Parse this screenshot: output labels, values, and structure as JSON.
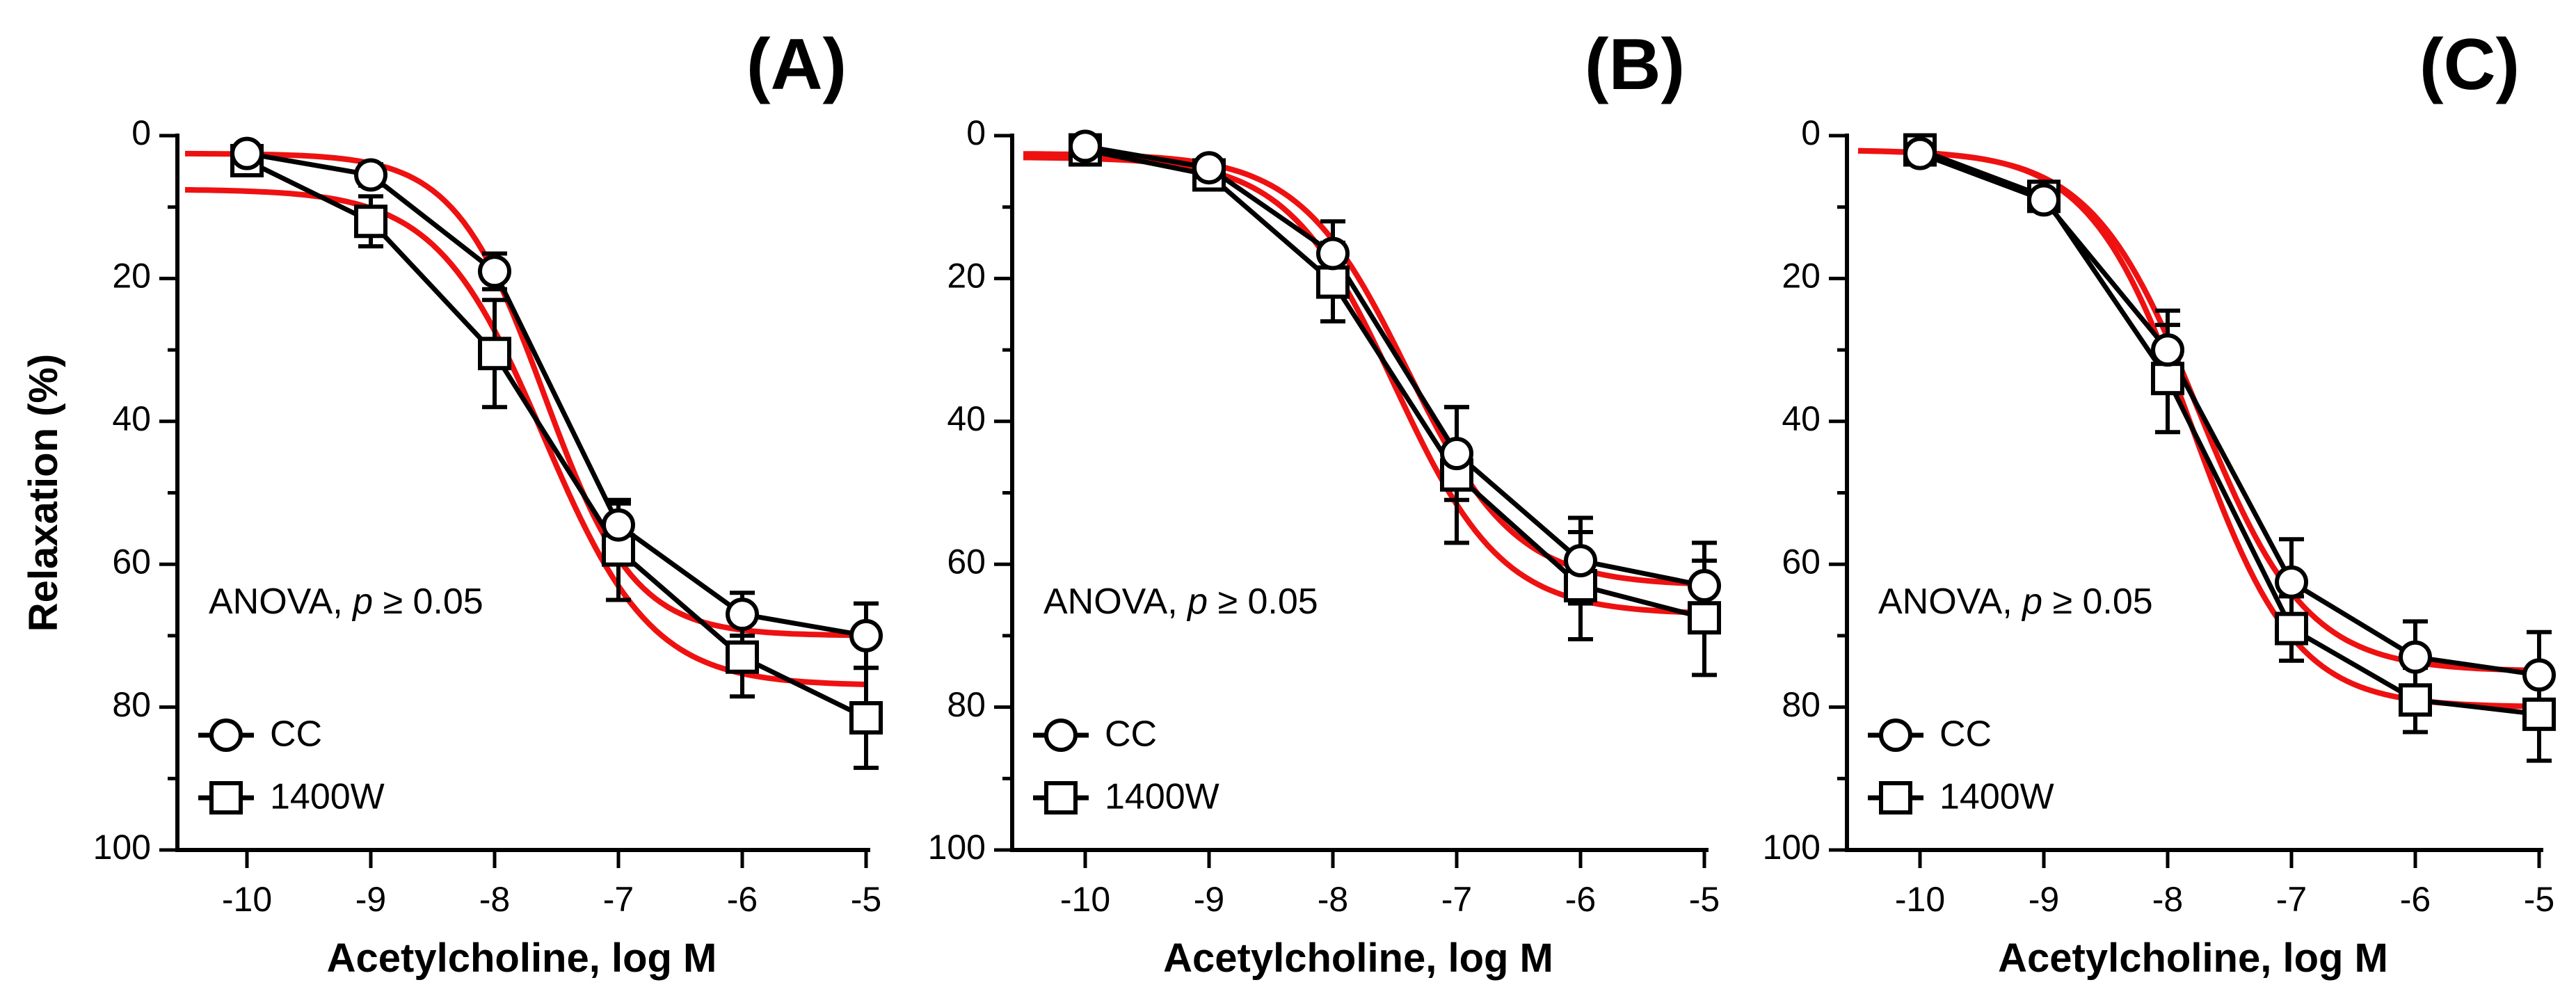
{
  "chart_data": [
    {
      "type": "line",
      "panel_label": "(A)",
      "xlabel": "Acetylcholine, log M",
      "ylabel": "Relaxation (%)",
      "annotation": {
        "prefix": "ANOVA, ",
        "italic": "p",
        "suffix": " ≥ 0.05"
      },
      "x": [
        -10,
        -9,
        -8,
        -7,
        -6,
        -5
      ],
      "xlim": [
        -10.5,
        -5
      ],
      "ylim": [
        0,
        100
      ],
      "y_inverted": true,
      "x_ticks": [
        "-10",
        "-9",
        "-8",
        "-7",
        "-6",
        "-5"
      ],
      "y_ticks": [
        "0",
        "20",
        "40",
        "60",
        "80",
        "100"
      ],
      "legend": {
        "position": "bottom-left"
      },
      "series": [
        {
          "name": "CC",
          "marker": "circle",
          "values": [
            2.5,
            5.5,
            19,
            54.5,
            67,
            70
          ],
          "errors": [
            0,
            1.5,
            2.5,
            3,
            3,
            4.5
          ],
          "fit": {
            "bottom": 2.5,
            "top": 70,
            "logEC50": -7.6,
            "hill": 1.2,
            "color": "#ee1111"
          }
        },
        {
          "name": "1400W",
          "marker": "square",
          "values": [
            3.5,
            12,
            30.5,
            58,
            73,
            81.5
          ],
          "errors": [
            0,
            3.5,
            7.5,
            7,
            5.5,
            7
          ],
          "fit": {
            "bottom": 7.5,
            "top": 77,
            "logEC50": -7.6,
            "hill": 1.0,
            "color": "#ee1111"
          }
        }
      ]
    },
    {
      "type": "line",
      "panel_label": "(B)",
      "xlabel": "Acetylcholine, log M",
      "ylabel": "",
      "annotation": {
        "prefix": "ANOVA, ",
        "italic": "p",
        "suffix": " ≥ 0.05"
      },
      "x": [
        -10,
        -9,
        -8,
        -7,
        -6,
        -5
      ],
      "xlim": [
        -10.5,
        -5
      ],
      "ylim": [
        0,
        100
      ],
      "y_inverted": true,
      "x_ticks": [
        "-10",
        "-9",
        "-8",
        "-7",
        "-6",
        "-5"
      ],
      "y_ticks": [
        "0",
        "20",
        "40",
        "60",
        "80",
        "100"
      ],
      "legend": {
        "position": "bottom-left"
      },
      "series": [
        {
          "name": "CC",
          "marker": "circle",
          "values": [
            1.5,
            4.5,
            16.5,
            44.5,
            59.5,
            63
          ],
          "errors": [
            0,
            0,
            4.5,
            6.5,
            6,
            6
          ],
          "fit": {
            "bottom": 2.5,
            "top": 63,
            "logEC50": -7.4,
            "hill": 1.0,
            "color": "#ee1111"
          }
        },
        {
          "name": "1400W",
          "marker": "square",
          "values": [
            2,
            5.5,
            20.5,
            47.5,
            63,
            67.5
          ],
          "errors": [
            0,
            0,
            5.5,
            9.5,
            7.5,
            8
          ],
          "fit": {
            "bottom": 3,
            "top": 67,
            "logEC50": -7.5,
            "hill": 1.0,
            "color": "#ee1111"
          }
        }
      ]
    },
    {
      "type": "line",
      "panel_label": "(C)",
      "xlabel": "Acetylcholine, log M",
      "ylabel": "",
      "annotation": {
        "prefix": "ANOVA, ",
        "italic": "p",
        "suffix": " ≥ 0.05"
      },
      "x": [
        -10,
        -9,
        -8,
        -7,
        -6,
        -5
      ],
      "xlim": [
        -10.5,
        -5
      ],
      "ylim": [
        0,
        100
      ],
      "y_inverted": true,
      "x_ticks": [
        "-10",
        "-9",
        "-8",
        "-7",
        "-6",
        "-5"
      ],
      "y_ticks": [
        "0",
        "20",
        "40",
        "60",
        "80",
        "100"
      ],
      "legend": {
        "position": "bottom-left"
      },
      "series": [
        {
          "name": "CC",
          "marker": "circle",
          "values": [
            2.5,
            9,
            30,
            62.5,
            73,
            75.5
          ],
          "errors": [
            0,
            1.5,
            5.5,
            6,
            5,
            6
          ],
          "fit": {
            "bottom": 2,
            "top": 75,
            "logEC50": -7.75,
            "hill": 1.0,
            "color": "#ee1111"
          }
        },
        {
          "name": "1400W",
          "marker": "square",
          "values": [
            2,
            8.5,
            34,
            69,
            79,
            81
          ],
          "errors": [
            0,
            2,
            7.5,
            4.5,
            4.5,
            6.5
          ],
          "fit": {
            "bottom": 2,
            "top": 80,
            "logEC50": -7.8,
            "hill": 1.05,
            "color": "#ee1111"
          }
        }
      ]
    }
  ]
}
